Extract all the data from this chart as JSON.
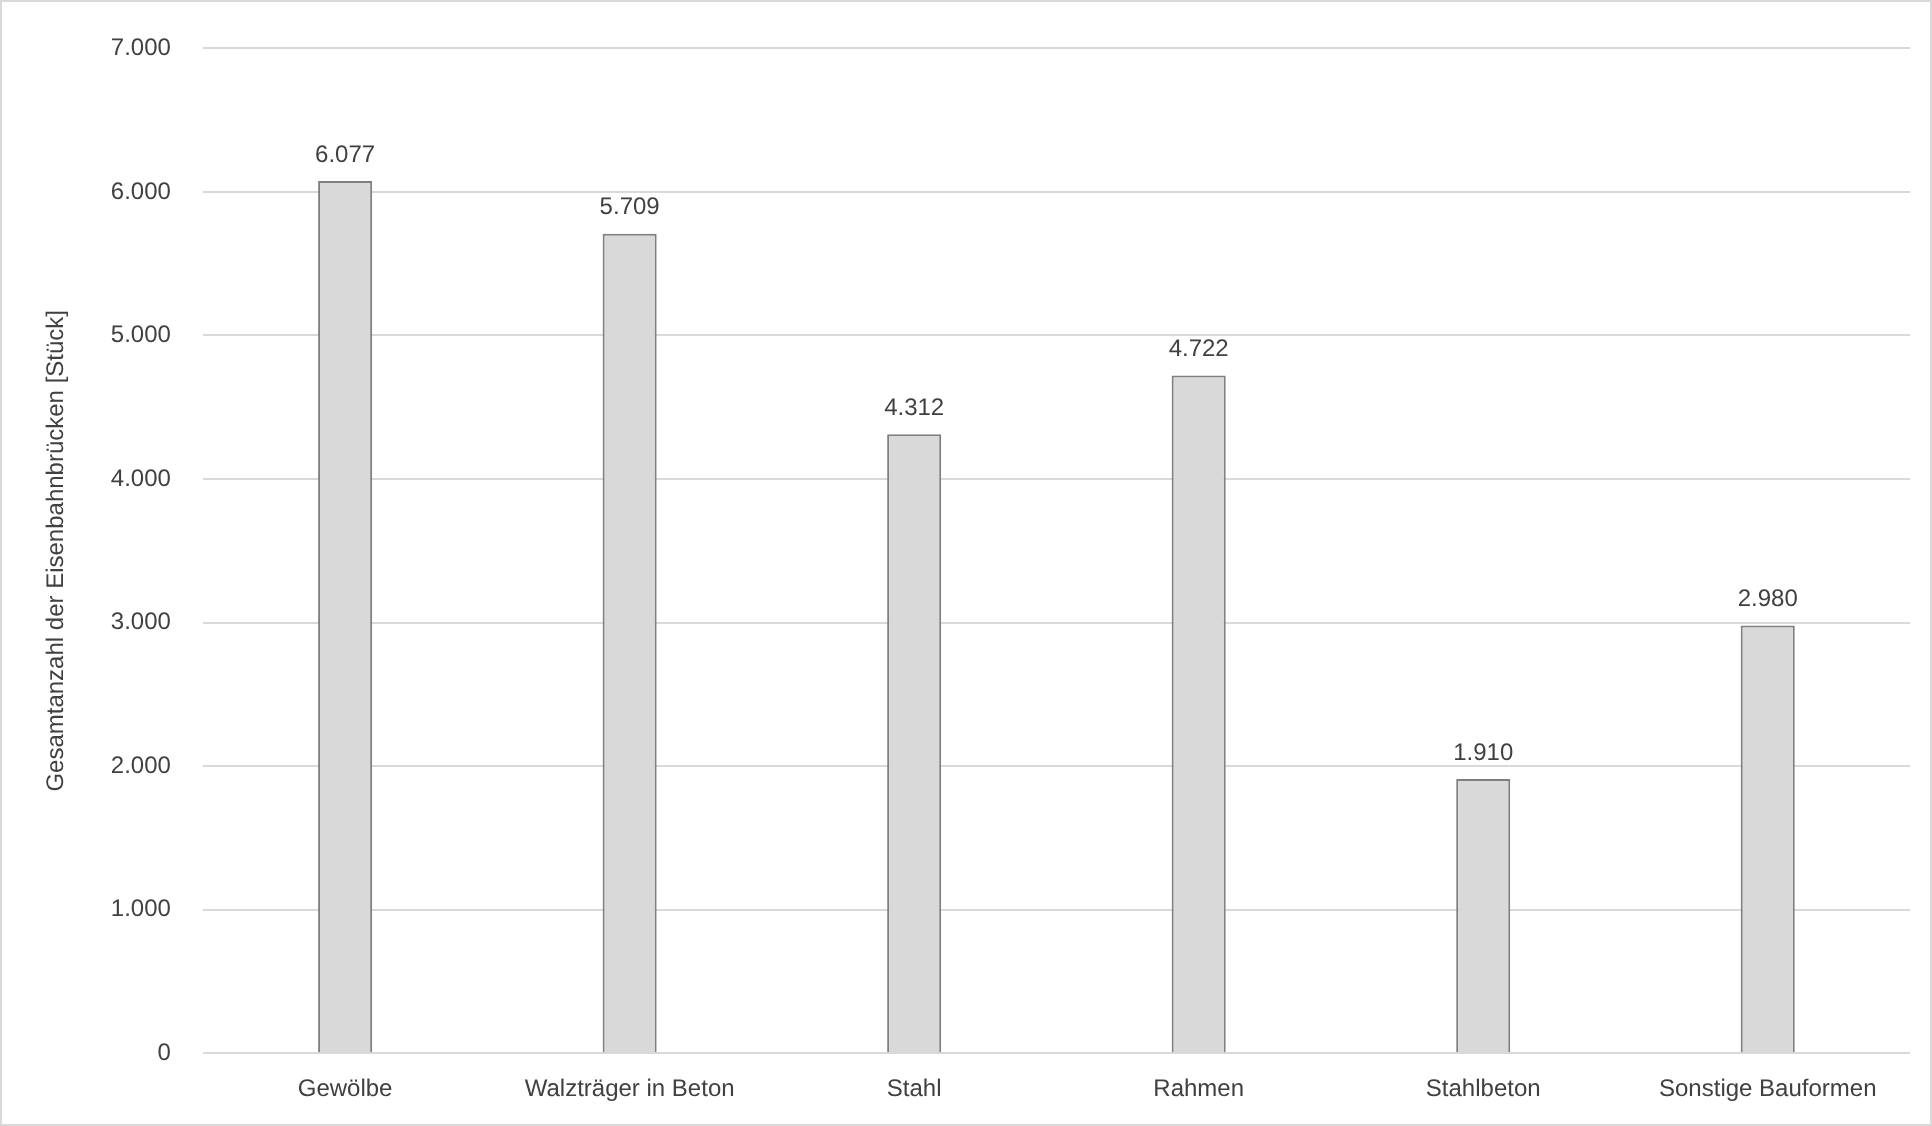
{
  "chart_data": {
    "type": "bar",
    "ylabel": "Gesamtanzahl der Eisenbahnbrücken [Stück]",
    "categories": [
      "Gewölbe",
      "Walzträger in Beton",
      "Stahl",
      "Rahmen",
      "Stahlbeton",
      "Sonstige Bauformen"
    ],
    "values": [
      6077,
      5709,
      4312,
      4722,
      1910,
      2980
    ],
    "value_labels": [
      "6.077",
      "5.709",
      "4.312",
      "4.722",
      "1.910",
      "2.980"
    ],
    "color": "#d9d9d9",
    "ylim": [
      0,
      7000
    ],
    "yticks": [
      0,
      {
        "value": 1000,
        "label": "1.000"
      },
      {
        "value": 2000,
        "label": "2.000"
      },
      {
        "value": 3000,
        "label": "3.000"
      },
      {
        "value": 4000,
        "label": "4.000"
      },
      {
        "value": 5000,
        "label": "5.000"
      },
      {
        "value": 6000,
        "label": "6.000"
      },
      {
        "value": 7000,
        "label": "7.000"
      }
    ],
    "grid": "y",
    "legend": false
  }
}
